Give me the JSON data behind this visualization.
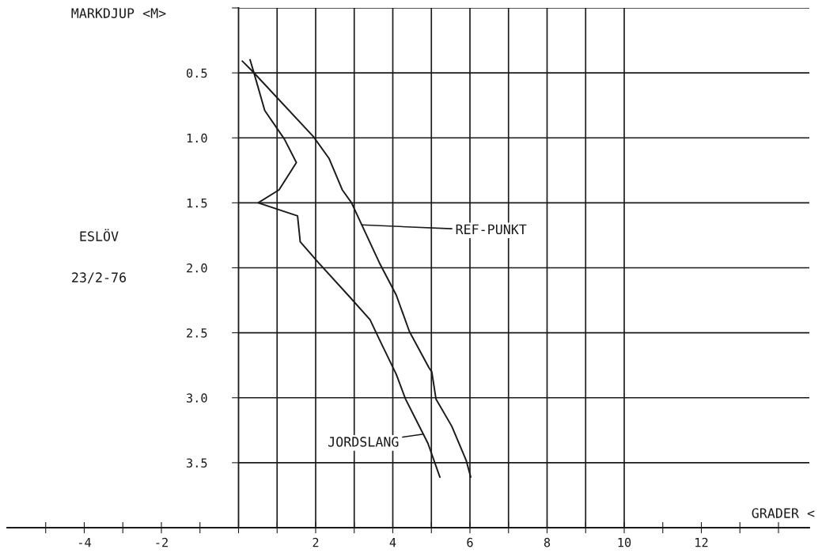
{
  "chart_data": {
    "type": "line",
    "xlabel": "GRADER <",
    "ylabel": "MARKDJUP <M>",
    "xlim": [
      -6,
      14.8
    ],
    "ylim": [
      4.0,
      0
    ],
    "xticks": [
      {
        "value": -5,
        "label": null
      },
      -4,
      {
        "value": -3,
        "label": null
      },
      -2,
      {
        "value": -1,
        "label": null
      },
      {
        "value": 0,
        "label": null
      },
      {
        "value": 1,
        "label": null
      },
      2,
      {
        "value": 3,
        "label": null
      },
      4,
      {
        "value": 5,
        "label": null
      },
      6,
      {
        "value": 7,
        "label": null
      },
      8,
      {
        "value": 9,
        "label": null
      },
      10,
      {
        "value": 11,
        "label": null
      },
      12,
      {
        "value": 13,
        "label": null
      },
      {
        "value": 14,
        "label": null
      }
    ],
    "yticks": [
      {
        "value": 0,
        "label": null
      },
      0.5,
      {
        "value": 1.0,
        "label": "1.0"
      },
      1.5,
      {
        "value": 2.0,
        "label": "2.0"
      },
      2.5,
      {
        "value": 3.0,
        "label": "3.0"
      },
      3.5
    ],
    "grid": true,
    "marker": "none",
    "line_style": "solid",
    "series": [
      {
        "color": "#1a1a1a",
        "x": [
          0.3,
          0.4,
          0.68,
          1.19,
          1.5,
          1.05,
          0.51,
          1.53,
          1.6,
          2.07,
          2.9,
          3.41,
          3.65,
          4.09,
          4.33,
          4.91,
          5.22
        ],
        "values": [
          0.4,
          0.5,
          0.79,
          1.01,
          1.19,
          1.4,
          1.5,
          1.6,
          1.8,
          1.96,
          2.23,
          2.4,
          2.55,
          2.82,
          3.01,
          3.35,
          3.61
        ]
      },
      {
        "color": "#1a1a1a",
        "x": [
          0.1,
          0.37,
          1.94,
          2.35,
          2.69,
          2.93,
          3.65,
          4.09,
          4.43,
          4.94,
          5.01,
          5.12,
          5.53,
          5.9,
          6.02
        ],
        "values": [
          0.41,
          0.49,
          0.99,
          1.16,
          1.4,
          1.5,
          1.96,
          2.21,
          2.49,
          2.77,
          2.8,
          3.01,
          3.22,
          3.48,
          3.61
        ]
      }
    ],
    "annotations": [
      {
        "text": "REF-PUNKT",
        "x": 3.2,
        "y": 1.67
      },
      {
        "text": "JORDSLANG",
        "x": 4.79,
        "y": 3.28
      },
      "ESLÖV",
      "23/2-76"
    ]
  }
}
